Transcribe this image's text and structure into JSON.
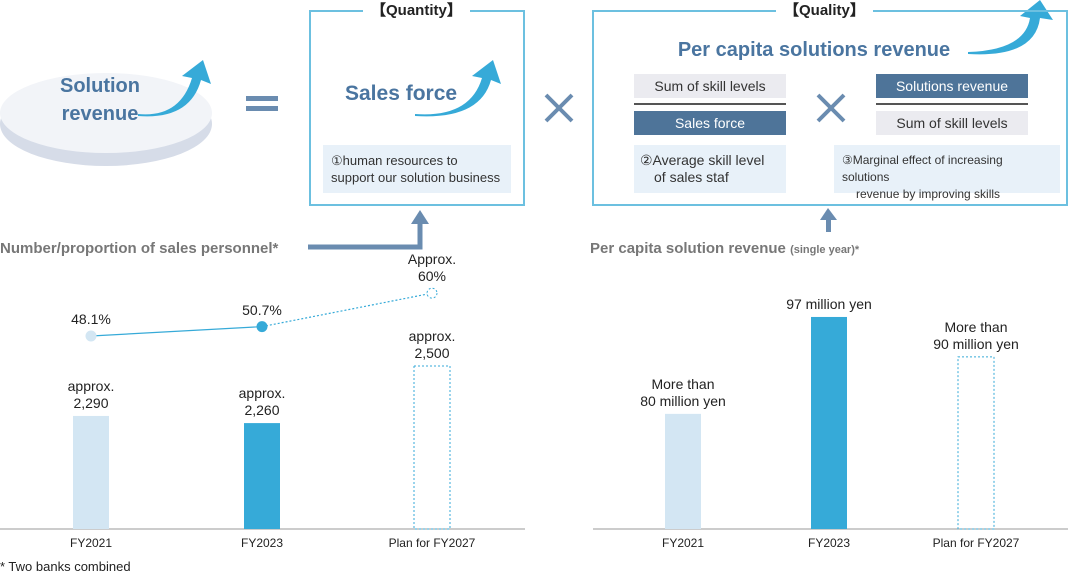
{
  "formula": {
    "result": "Solution revenue",
    "equals": "=",
    "times": "×",
    "quantity": {
      "legend": "【Quantity】",
      "title": "Sales force",
      "note": "①human resources to support our solution business"
    },
    "quality": {
      "legend": "【Quality】",
      "title": "Per capita solutions revenue",
      "frac1": {
        "num": "Sum of skill levels",
        "den": "Sales force"
      },
      "frac2": {
        "num": "Solutions revenue",
        "den": "Sum of skill levels"
      },
      "note2_l1": "②Average skill level",
      "note2_l2": "of sales staf",
      "note3_l1": "③Marginal effect of increasing solutions",
      "note3_l2": "revenue by improving skills"
    }
  },
  "footnote": "* Two banks combined",
  "colors": {
    "actual_light": "#d3e6f3",
    "actual": "#36aad8",
    "plan_outline": "#36aad8",
    "heading": "#4a75a0",
    "arrow": "#36aad8"
  },
  "chart_data": [
    {
      "type": "bar",
      "title": "Number/proportion of sales personnel*",
      "categories": [
        "FY2021",
        "FY2023",
        "Plan for FY2027"
      ],
      "values": [
        2290,
        2260,
        2500
      ],
      "value_labels": [
        [
          "approx.",
          "2,290"
        ],
        [
          "approx.",
          "2,260"
        ],
        [
          "approx.",
          "2,500"
        ]
      ],
      "line": {
        "values": [
          48.1,
          50.7,
          60
        ],
        "labels": [
          [
            "48.1%"
          ],
          [
            "50.7%"
          ],
          [
            "Approx.",
            "60%"
          ]
        ],
        "unit": "%"
      },
      "plan_index": 2
    },
    {
      "type": "bar",
      "title": "Per capita solution revenue",
      "title_suffix": "(single year)*",
      "categories": [
        "FY2021",
        "FY2023",
        "Plan for FY2027"
      ],
      "values": [
        80,
        97,
        90
      ],
      "value_labels": [
        [
          "More than",
          "80 million yen"
        ],
        [
          "97 million yen"
        ],
        [
          "More than",
          "90 million yen"
        ]
      ],
      "unit": "million yen",
      "plan_index": 2
    }
  ]
}
